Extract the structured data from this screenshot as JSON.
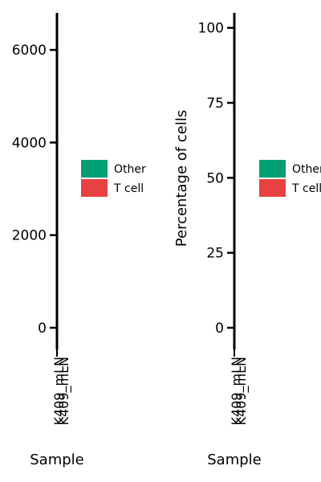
{
  "chart_data": [
    {
      "type": "bar",
      "stacked": true,
      "title": "",
      "xlabel": "Sample",
      "ylabel": "",
      "categories": [
        "K409_mLN",
        "K409_mLN"
      ],
      "series": [
        {
          "name": "Other",
          "values": [
            0,
            0
          ]
        },
        {
          "name": "T cell",
          "values": [
            0,
            0
          ]
        }
      ],
      "ylim": [
        0,
        6800
      ],
      "yticks": [
        0,
        2000,
        4000,
        6000
      ],
      "ytick_labels": [
        "0",
        "2000",
        "4000",
        "6000"
      ],
      "colors": {
        "Other": "#009E73",
        "T cell": "#E84141"
      },
      "legend": {
        "position": "right",
        "entries": [
          "Other",
          "T cell"
        ]
      },
      "grid": false
    },
    {
      "type": "bar",
      "stacked": true,
      "title": "",
      "xlabel": "Sample",
      "ylabel": "Percentage of cells",
      "categories": [
        "K409_mLN",
        "K409_mLN"
      ],
      "series": [
        {
          "name": "Other",
          "values": [
            0,
            0
          ]
        },
        {
          "name": "T cell",
          "values": [
            0,
            0
          ]
        }
      ],
      "ylim": [
        0,
        105
      ],
      "yticks": [
        0,
        25,
        50,
        75,
        100
      ],
      "ytick_labels": [
        "0",
        "25",
        "50",
        "75",
        "100"
      ],
      "colors": {
        "Other": "#009E73",
        "T cell": "#E84141"
      },
      "legend": {
        "position": "right",
        "entries": [
          "Other",
          "T cell"
        ]
      },
      "grid": false
    }
  ]
}
